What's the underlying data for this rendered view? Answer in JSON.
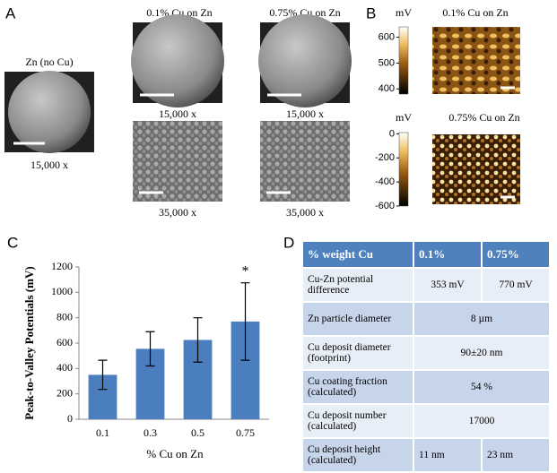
{
  "panel_labels": [
    "A",
    "B",
    "C",
    "D"
  ],
  "panel_a": {
    "images": [
      {
        "title": "Zn (no Cu)",
        "magnification": "15,000 x"
      },
      {
        "title": "0.1% Cu on Zn",
        "magnification": "15,000 x"
      },
      {
        "magnification": "35,000 x"
      },
      {
        "title": "0.75% Cu on Zn",
        "magnification": "15,000 x"
      },
      {
        "magnification": "35,000 x"
      }
    ]
  },
  "panel_b": {
    "maps": [
      {
        "title": "0.1% Cu on Zn",
        "unit": "mV",
        "lim": [
          380,
          640
        ],
        "ticks": [
          600,
          500,
          400
        ]
      },
      {
        "title": "0.75% Cu on Zn",
        "unit": "mV",
        "lim": [
          -600,
          10
        ],
        "ticks": [
          0,
          -200,
          -400,
          -600
        ]
      }
    ]
  },
  "chart_data": {
    "type": "bar",
    "y_label": "Peak-to-Valley Potentials (mV)",
    "x_label": "% Cu on Zn",
    "categories": [
      "0.1",
      "0.3",
      "0.5",
      "0.75"
    ],
    "values": [
      350,
      555,
      625,
      770
    ],
    "errors": [
      115,
      135,
      175,
      305
    ],
    "color": "#4a7ebf",
    "ylim": [
      0,
      1200
    ],
    "yticks": [
      0,
      200,
      400,
      600,
      800,
      1000,
      1200
    ],
    "annotations": [
      {
        "text": "*",
        "category": "0.75"
      }
    ]
  },
  "table": {
    "header": [
      "% weight Cu",
      "0.1%",
      "0.75%"
    ],
    "rows": [
      [
        "Cu-Zn potential difference",
        "353 mV",
        "770 mV"
      ],
      [
        "Zn particle diameter",
        "8 µm"
      ],
      [
        "Cu deposit diameter (footprint)",
        "90±20 nm"
      ],
      [
        "Cu coating fraction (calculated)",
        "54 %"
      ],
      [
        "Cu deposit number (calculated)",
        "17000"
      ],
      [
        "Cu deposit height (calculated)",
        "11 nm",
        "23 nm"
      ]
    ]
  }
}
